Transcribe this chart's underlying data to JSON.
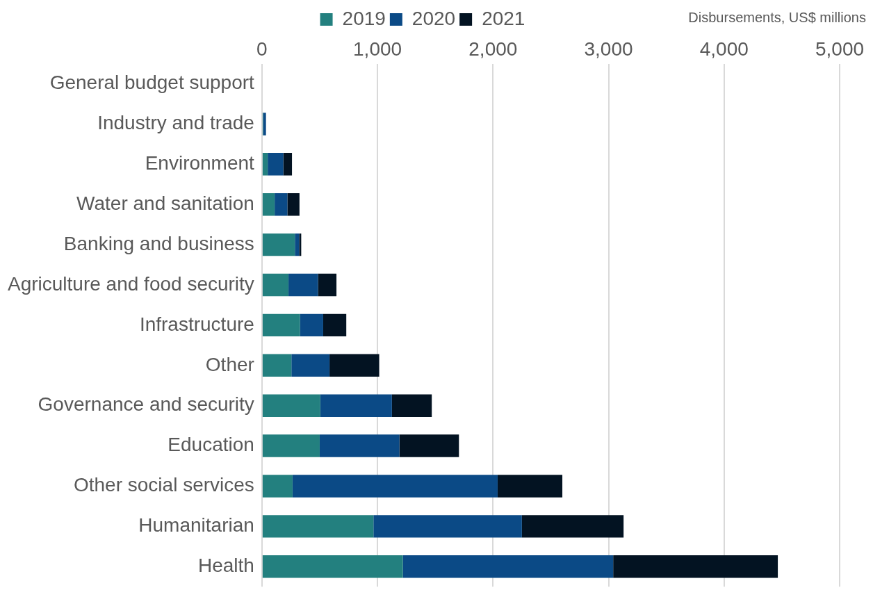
{
  "chart_data": {
    "type": "bar",
    "orientation": "horizontal",
    "stacked": true,
    "categories": [
      "General budget support",
      "Industry and trade",
      "Environment",
      "Water and sanitation",
      "Banking and business",
      "Agriculture and food security",
      "Infrastructure",
      "Other",
      "Governance and security",
      "Education",
      "Other social services",
      "Humanitarian",
      "Health"
    ],
    "series": [
      {
        "name": "2019",
        "color": "#23807f",
        "values": [
          0,
          10,
          50,
          110,
          285,
          230,
          330,
          255,
          505,
          500,
          265,
          965,
          1220
        ]
      },
      {
        "name": "2020",
        "color": "#0b4a86",
        "values": [
          0,
          25,
          135,
          110,
          37,
          255,
          200,
          330,
          620,
          690,
          1775,
          1285,
          1820
        ]
      },
      {
        "name": "2021",
        "color": "#031322",
        "values": [
          0,
          0,
          75,
          105,
          18,
          160,
          200,
          430,
          345,
          515,
          560,
          880,
          1425
        ]
      }
    ],
    "xlim": [
      0,
      5000
    ],
    "xticks": [
      {
        "value": 0,
        "label": "0"
      },
      {
        "value": 1000,
        "label": "1,000"
      },
      {
        "value": 2000,
        "label": "2,000"
      },
      {
        "value": 3000,
        "label": "3,000"
      },
      {
        "value": 4000,
        "label": "4,000"
      },
      {
        "value": 5000,
        "label": "5,000"
      }
    ],
    "grid": "x",
    "legend": "top",
    "annotations": [
      "Disbursements, US$ millions"
    ]
  }
}
